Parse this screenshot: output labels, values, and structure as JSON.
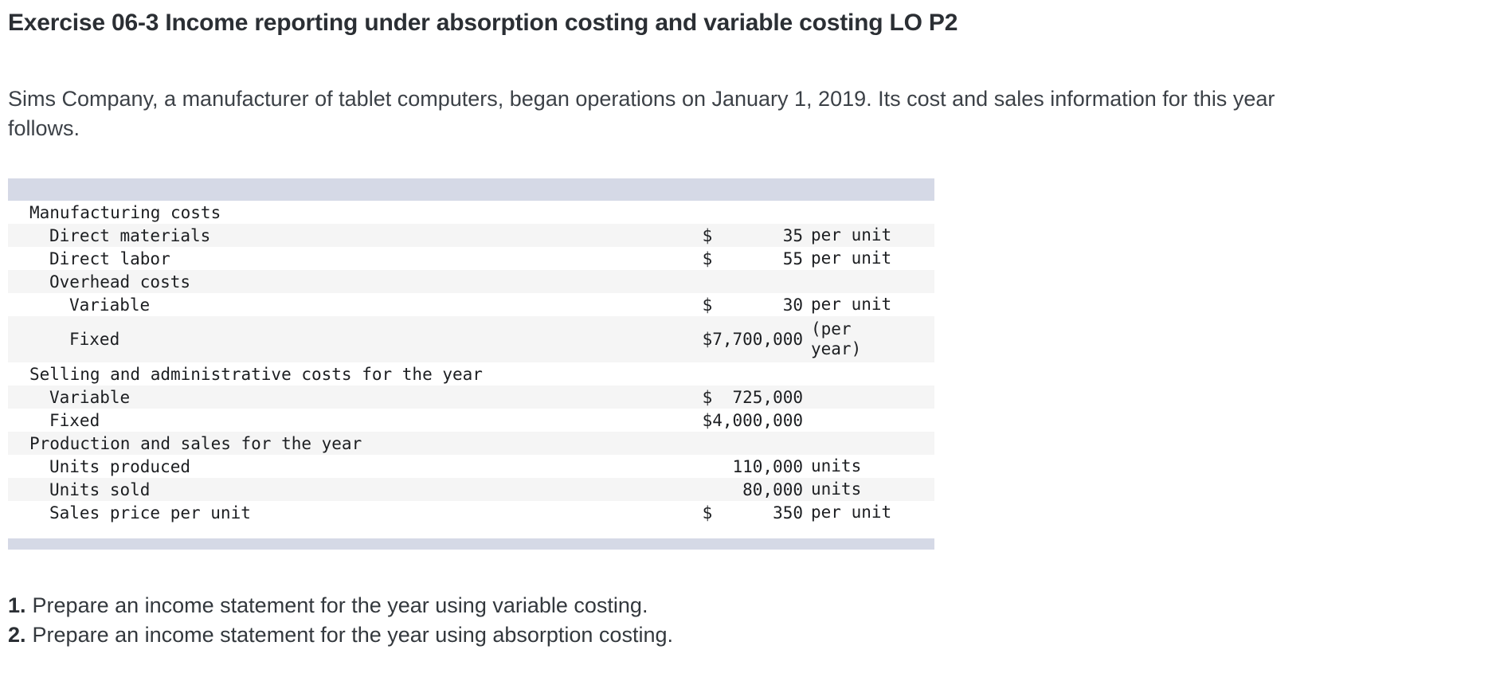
{
  "title": "Exercise 06-3 Income reporting under absorption costing and variable costing LO P2",
  "intro": {
    "line1": "Sims Company, a manufacturer of tablet computers, began operations on January 1, 2019. Its cost and sales information for this year",
    "line2": "follows."
  },
  "colors": {
    "header_bar": "#d5d9e6",
    "row_stripe": "#f5f5f5"
  },
  "chart_data": {
    "type": "table",
    "title": "Cost and sales information",
    "rows": [
      {
        "label": "Manufacturing costs",
        "indent": 0,
        "amount": "",
        "unit": "",
        "shade": false,
        "tall": false
      },
      {
        "label": "Direct materials",
        "indent": 1,
        "amount": "$       35",
        "unit": "per unit",
        "shade": true,
        "tall": false
      },
      {
        "label": "Direct labor",
        "indent": 1,
        "amount": "$       55",
        "unit": "per unit",
        "shade": false,
        "tall": false
      },
      {
        "label": "Overhead costs",
        "indent": 1,
        "amount": "",
        "unit": "",
        "shade": true,
        "tall": false
      },
      {
        "label": "Variable",
        "indent": 2,
        "amount": "$       30",
        "unit": "per unit",
        "shade": false,
        "tall": false
      },
      {
        "label": "Fixed",
        "indent": 2,
        "amount": "$7,700,000",
        "unit": "(per year)",
        "shade": true,
        "tall": true
      },
      {
        "label": "Selling and administrative costs for the year",
        "indent": 0,
        "amount": "",
        "unit": "",
        "shade": false,
        "tall": false
      },
      {
        "label": "Variable",
        "indent": 1,
        "amount": "$  725,000",
        "unit": "",
        "shade": true,
        "tall": false
      },
      {
        "label": "Fixed",
        "indent": 1,
        "amount": "$4,000,000",
        "unit": "",
        "shade": false,
        "tall": false
      },
      {
        "label": "Production and sales for the year",
        "indent": 0,
        "amount": "",
        "unit": "",
        "shade": true,
        "tall": false
      },
      {
        "label": "Units produced",
        "indent": 1,
        "amount": "110,000",
        "unit": "units",
        "shade": false,
        "tall": false
      },
      {
        "label": "Units sold",
        "indent": 1,
        "amount": "80,000",
        "unit": "units",
        "shade": true,
        "tall": false
      },
      {
        "label": "Sales price per unit",
        "indent": 1,
        "amount": "$      350",
        "unit": "per unit",
        "shade": false,
        "tall": false
      }
    ]
  },
  "requirements": [
    {
      "num": "1.",
      "text": "Prepare an income statement for the year using variable costing."
    },
    {
      "num": "2.",
      "text": "Prepare an income statement for the year using absorption costing."
    }
  ]
}
